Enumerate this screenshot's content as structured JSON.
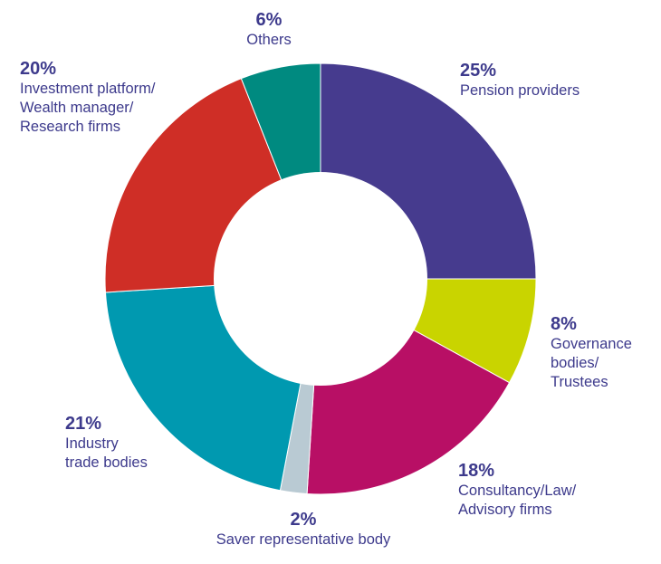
{
  "chart_data": {
    "type": "pie",
    "variant": "donut",
    "start": "top",
    "direction": "clockwise",
    "legend": "none",
    "slices": [
      {
        "label": "Pension providers",
        "value": 25,
        "pct": "25%",
        "color": "#463b8e"
      },
      {
        "label": "Governance bodies/ Trustees",
        "value": 8,
        "pct": "8%",
        "color": "#c9d400"
      },
      {
        "label": "Consultancy/Law/ Advisory firms",
        "value": 18,
        "pct": "18%",
        "color": "#b80f65"
      },
      {
        "label": "Saver representative body",
        "value": 2,
        "pct": "2%",
        "color": "#b9cad3"
      },
      {
        "label": "Industry trade bodies",
        "value": 21,
        "pct": "21%",
        "color": "#0099b0"
      },
      {
        "label": "Investment platform/ Wealth manager/ Research firms",
        "value": 20,
        "pct": "20%",
        "color": "#cf2e26"
      },
      {
        "label": "Others",
        "value": 6,
        "pct": "6%",
        "color": "#008a80"
      }
    ]
  },
  "labels": {
    "pension": {
      "pct": "25%",
      "name": "Pension providers"
    },
    "governance": {
      "pct": "8%",
      "name": "Governance\nbodies/\nTrustees"
    },
    "consultancy": {
      "pct": "18%",
      "name": "Consultancy/Law/\nAdvisory firms"
    },
    "saver": {
      "pct": "2%",
      "name": "Saver representative body"
    },
    "industry": {
      "pct": "21%",
      "name": "Industry\ntrade bodies"
    },
    "investment": {
      "pct": "20%",
      "name": "Investment platform/\nWealth manager/\nResearch firms"
    },
    "others": {
      "pct": "6%",
      "name": "Others"
    }
  }
}
